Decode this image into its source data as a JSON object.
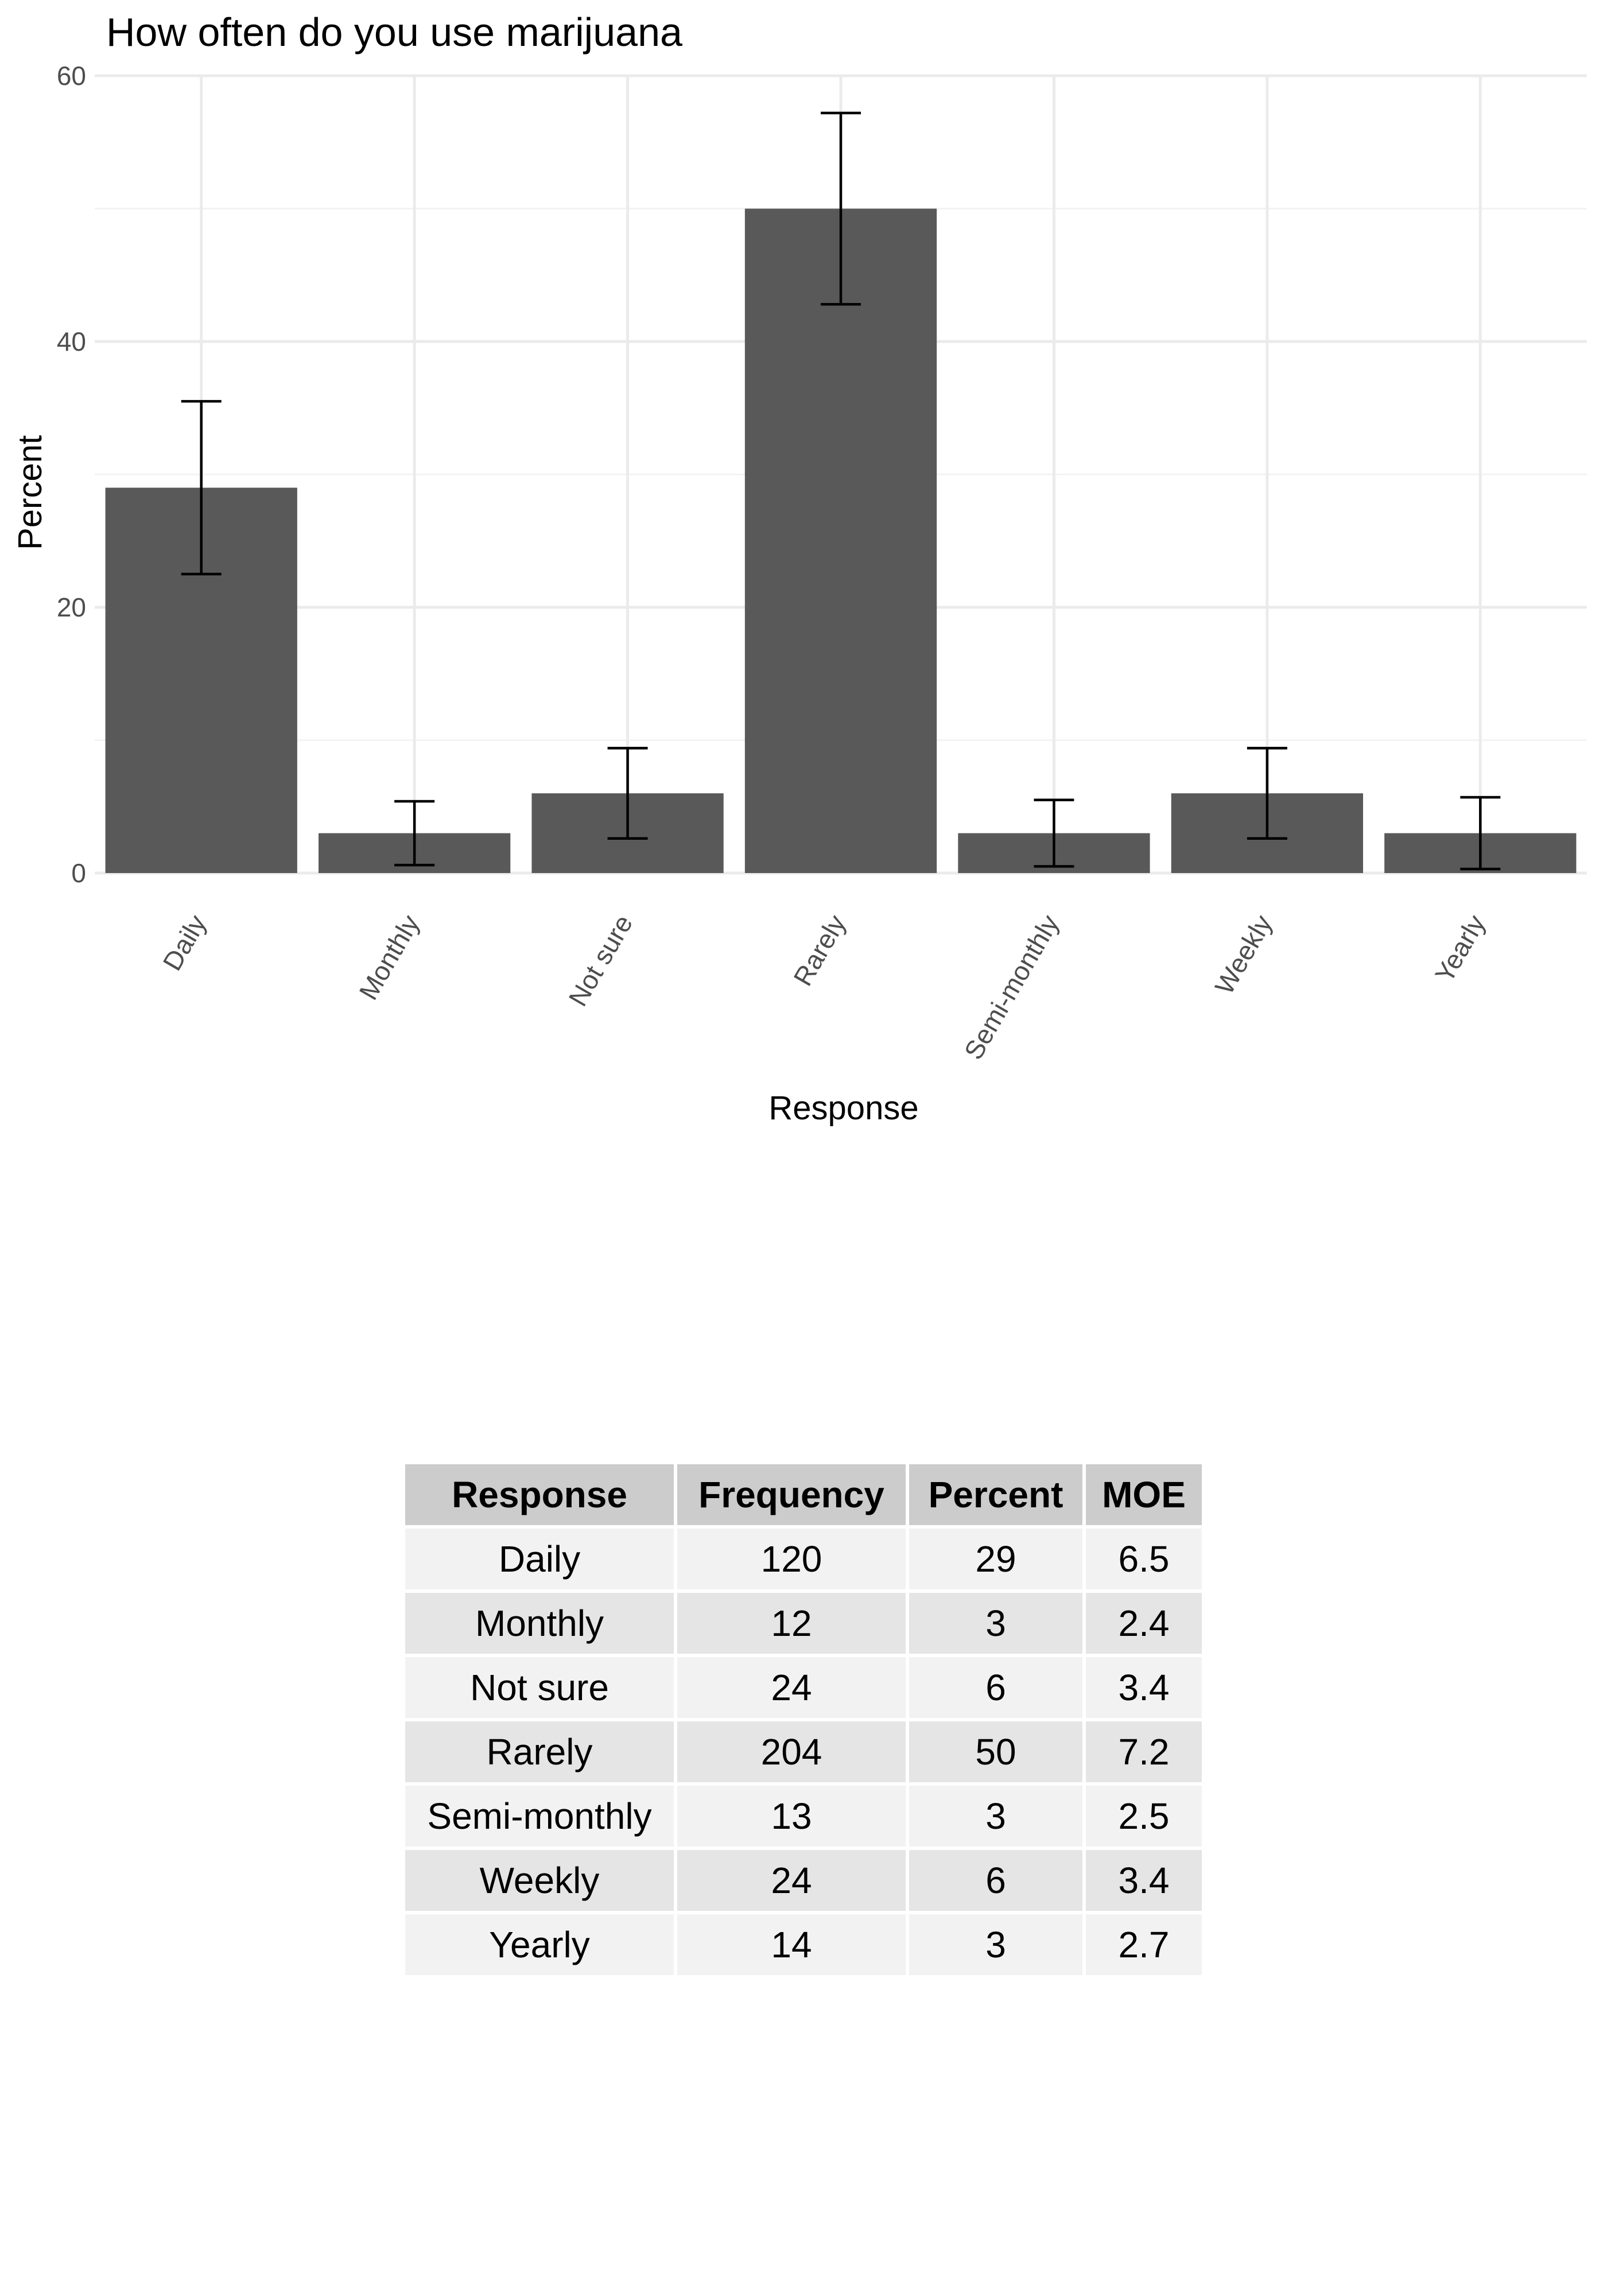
{
  "chart_data": {
    "type": "bar",
    "title": "How often do you use marijuana",
    "xlabel": "Response",
    "ylabel": "Percent",
    "categories": [
      "Daily",
      "Monthly",
      "Not sure",
      "Rarely",
      "Semi-monthly",
      "Weekly",
      "Yearly"
    ],
    "values": [
      29,
      3,
      6,
      50,
      3,
      6,
      3
    ],
    "error_low": [
      22.5,
      0.6,
      2.6,
      42.8,
      0.5,
      2.6,
      0.3
    ],
    "error_high": [
      35.5,
      5.4,
      9.4,
      57.2,
      5.5,
      9.4,
      5.7
    ],
    "ylim": [
      0,
      60
    ],
    "yticks": [
      0,
      20,
      40,
      60
    ],
    "grid": true,
    "bar_color": "#595959"
  },
  "table": {
    "headers": [
      "Response",
      "Frequency",
      "Percent",
      "MOE"
    ],
    "rows": [
      [
        "Daily",
        "120",
        "29",
        "6.5"
      ],
      [
        "Monthly",
        "12",
        "3",
        "2.4"
      ],
      [
        "Not sure",
        "24",
        "6",
        "3.4"
      ],
      [
        "Rarely",
        "204",
        "50",
        "7.2"
      ],
      [
        "Semi-monthly",
        "13",
        "3",
        "2.5"
      ],
      [
        "Weekly",
        "24",
        "6",
        "3.4"
      ],
      [
        "Yearly",
        "14",
        "3",
        "2.7"
      ]
    ]
  }
}
